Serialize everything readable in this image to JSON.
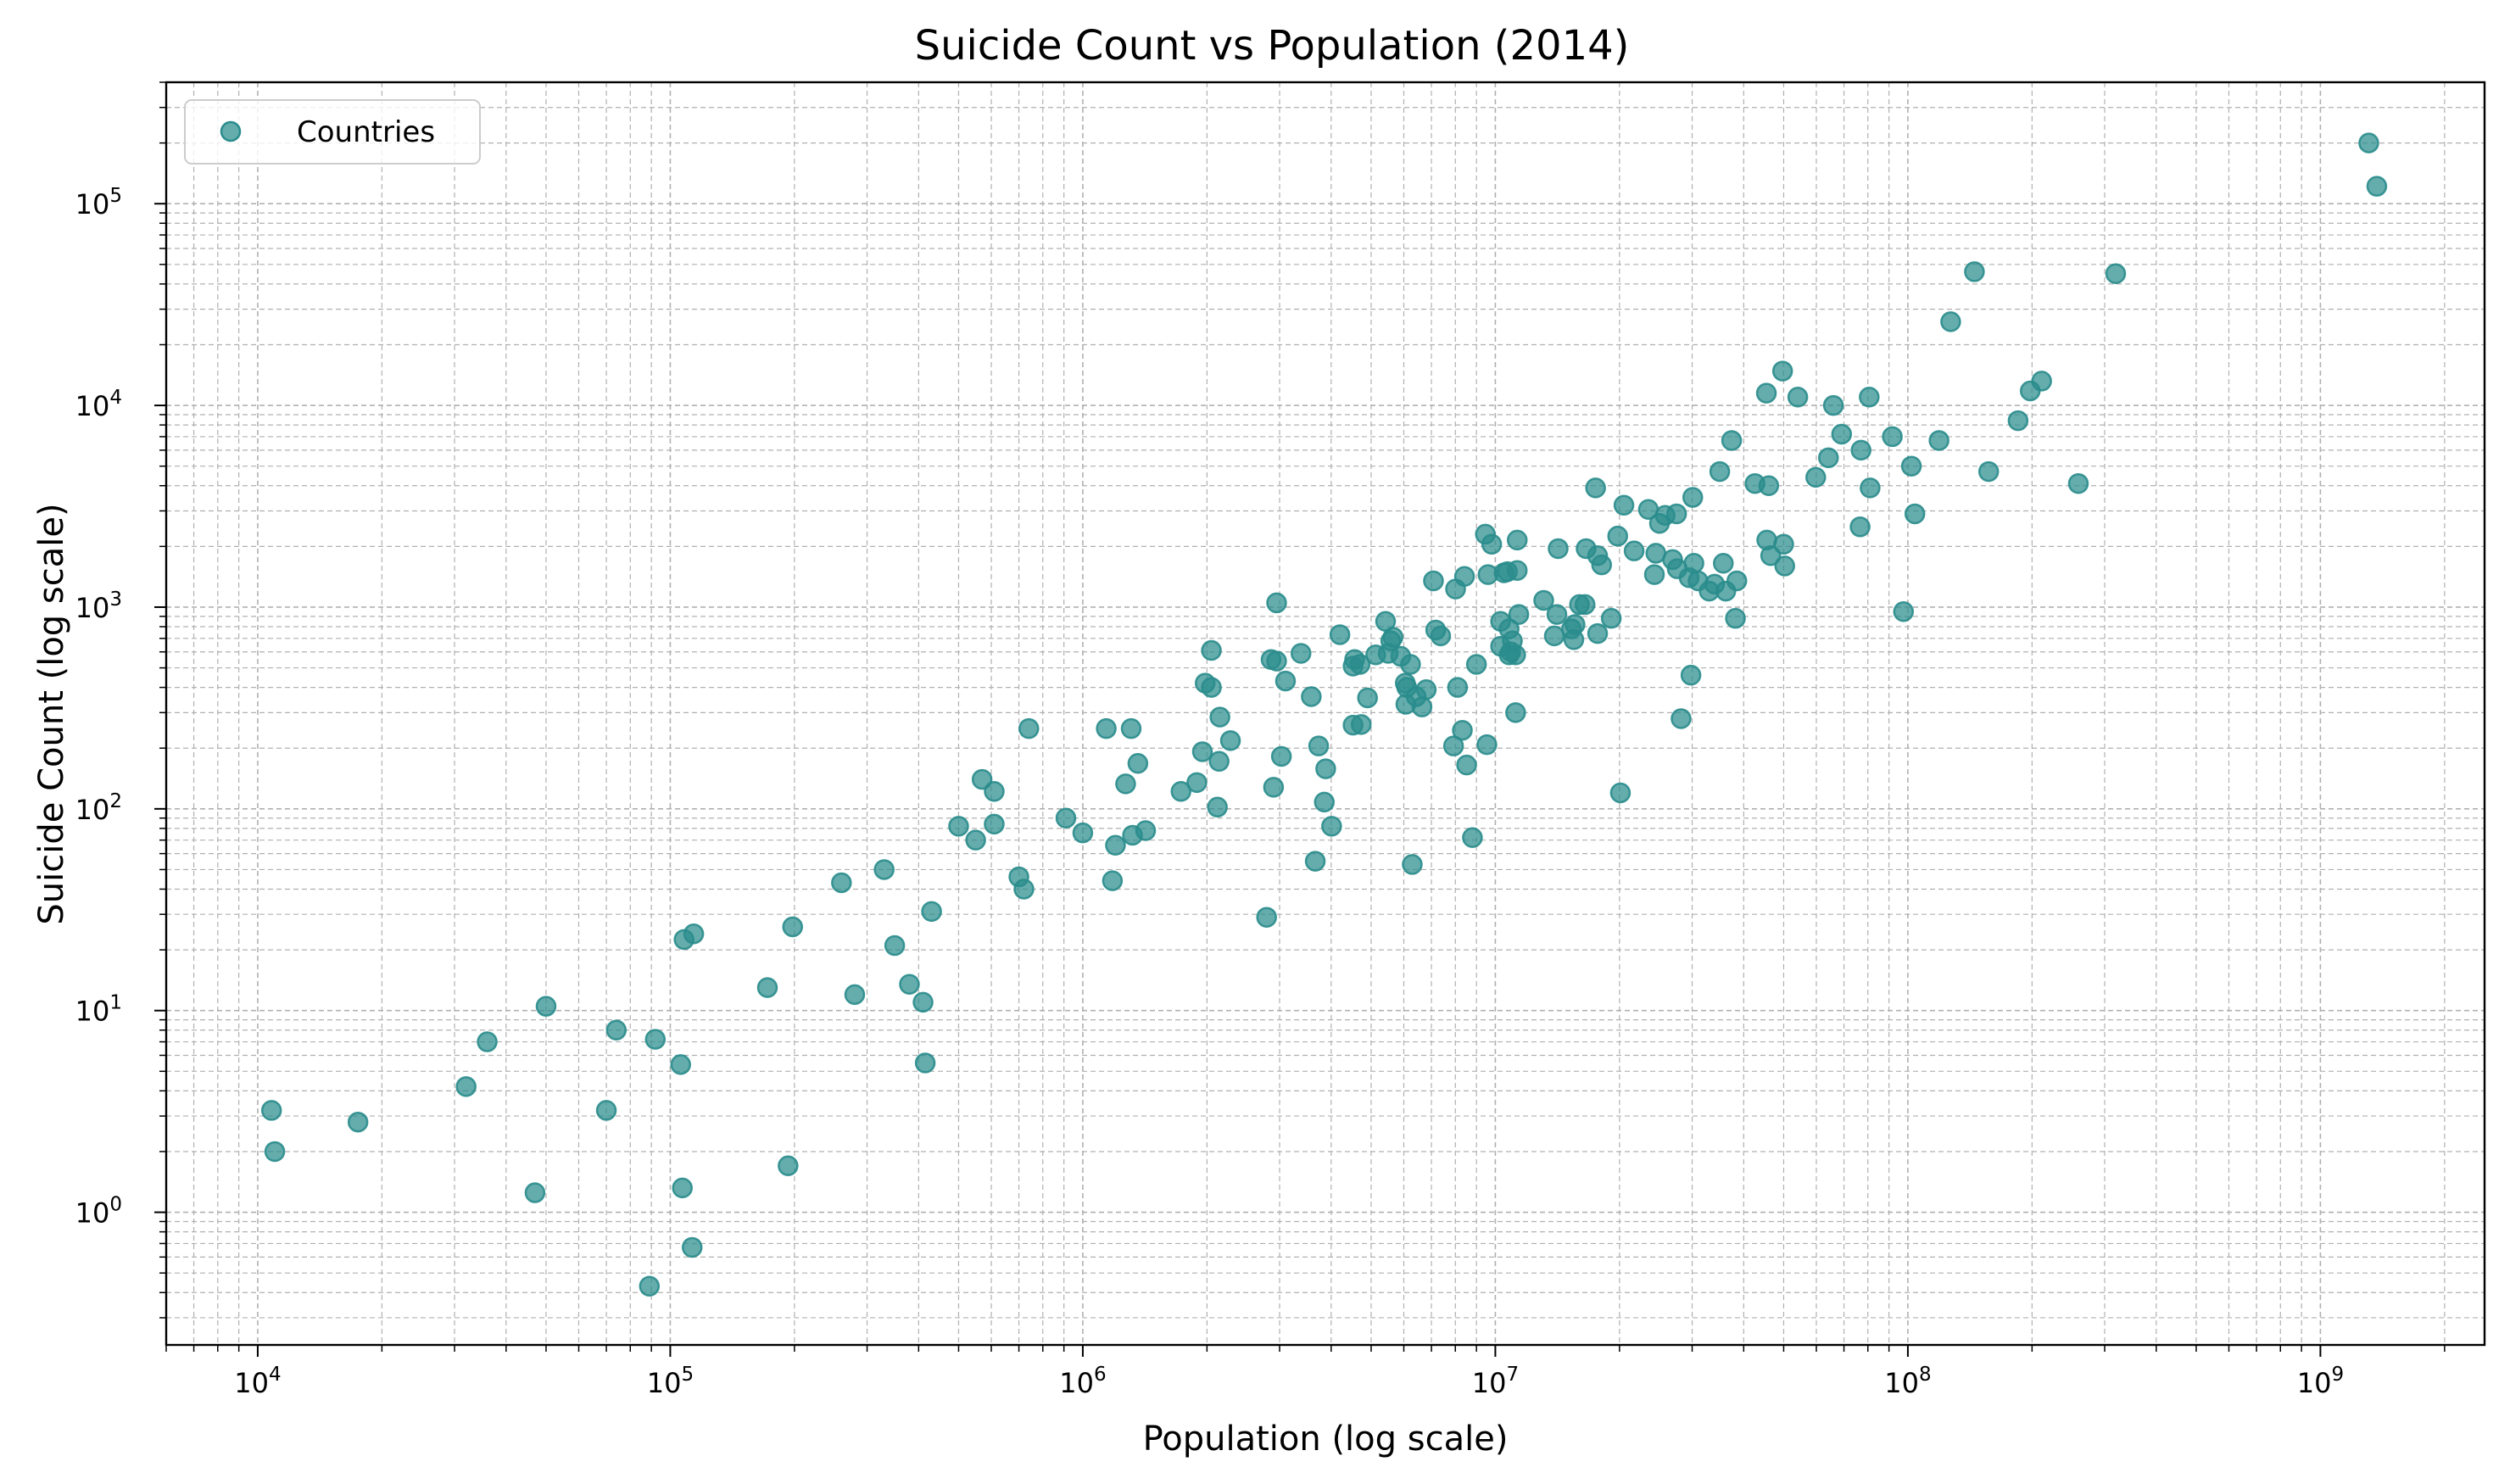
{
  "chart_data": {
    "type": "scatter",
    "title": "Suicide Count vs Population (2014)",
    "xlabel": "Population (log scale)",
    "ylabel": "Suicide Count (log scale)",
    "xscale": "log",
    "yscale": "log",
    "xlim": [
      6000,
      2500000000
    ],
    "ylim": [
      0.22,
      400000
    ],
    "grid": true,
    "grid_which": "both",
    "legend_position": "top-left",
    "marker_color": "#2a8c8c",
    "x_ticks": [
      {
        "base": "10",
        "exp": "4",
        "value": 10000
      },
      {
        "base": "10",
        "exp": "5",
        "value": 100000
      },
      {
        "base": "10",
        "exp": "6",
        "value": 1000000
      },
      {
        "base": "10",
        "exp": "7",
        "value": 10000000
      },
      {
        "base": "10",
        "exp": "8",
        "value": 100000000
      },
      {
        "base": "10",
        "exp": "9",
        "value": 1000000000
      }
    ],
    "y_ticks": [
      {
        "base": "10",
        "exp": "0",
        "value": 1
      },
      {
        "base": "10",
        "exp": "1",
        "value": 10
      },
      {
        "base": "10",
        "exp": "2",
        "value": 100
      },
      {
        "base": "10",
        "exp": "3",
        "value": 1000
      },
      {
        "base": "10",
        "exp": "4",
        "value": 10000
      },
      {
        "base": "10",
        "exp": "5",
        "value": 100000
      }
    ],
    "series": [
      {
        "name": "Countries",
        "points": [
          [
            10800,
            3.2
          ],
          [
            11000,
            2.0
          ],
          [
            17500,
            2.8
          ],
          [
            32000,
            4.2
          ],
          [
            36000,
            7.0
          ],
          [
            47000,
            1.25
          ],
          [
            50000,
            10.5
          ],
          [
            70000,
            3.2
          ],
          [
            74000,
            8.0
          ],
          [
            89000,
            0.43
          ],
          [
            92000,
            7.2
          ],
          [
            106000,
            5.4
          ],
          [
            107000,
            1.32
          ],
          [
            108000,
            22.5
          ],
          [
            113000,
            0.67
          ],
          [
            114000,
            24
          ],
          [
            172000,
            13
          ],
          [
            193000,
            1.7
          ],
          [
            198000,
            26
          ],
          [
            260000,
            43
          ],
          [
            280000,
            12
          ],
          [
            330000,
            50
          ],
          [
            350000,
            21
          ],
          [
            380000,
            13.5
          ],
          [
            410000,
            11
          ],
          [
            415000,
            5.5
          ],
          [
            430000,
            31
          ],
          [
            500000,
            82
          ],
          [
            550000,
            70
          ],
          [
            570000,
            140
          ],
          [
            610000,
            122
          ],
          [
            610000,
            84
          ],
          [
            700000,
            46
          ],
          [
            720000,
            40
          ],
          [
            740000,
            250
          ],
          [
            910000,
            90
          ],
          [
            1000000,
            76
          ],
          [
            1140000,
            250
          ],
          [
            1180000,
            44
          ],
          [
            1200000,
            66
          ],
          [
            1270000,
            133
          ],
          [
            1310000,
            250
          ],
          [
            1320000,
            74
          ],
          [
            1360000,
            168
          ],
          [
            1420000,
            78
          ],
          [
            1730000,
            122
          ],
          [
            1890000,
            135
          ],
          [
            1950000,
            192
          ],
          [
            1980000,
            420
          ],
          [
            2050000,
            610
          ],
          [
            2050000,
            400
          ],
          [
            2120000,
            102
          ],
          [
            2140000,
            172
          ],
          [
            2150000,
            285
          ],
          [
            2280000,
            218
          ],
          [
            2790000,
            29
          ],
          [
            2860000,
            550
          ],
          [
            2900000,
            128
          ],
          [
            2950000,
            1050
          ],
          [
            2950000,
            540
          ],
          [
            3030000,
            182
          ],
          [
            3100000,
            430
          ],
          [
            3380000,
            590
          ],
          [
            3580000,
            360
          ],
          [
            3660000,
            55
          ],
          [
            3730000,
            205
          ],
          [
            3850000,
            108
          ],
          [
            3880000,
            158
          ],
          [
            4010000,
            82
          ],
          [
            4200000,
            730
          ],
          [
            4520000,
            260
          ],
          [
            4520000,
            510
          ],
          [
            4560000,
            550
          ],
          [
            4700000,
            520
          ],
          [
            4730000,
            262
          ],
          [
            4900000,
            355
          ],
          [
            5130000,
            580
          ],
          [
            5420000,
            850
          ],
          [
            5500000,
            590
          ],
          [
            5580000,
            680
          ],
          [
            5650000,
            710
          ],
          [
            5900000,
            570
          ],
          [
            6050000,
            420
          ],
          [
            6070000,
            330
          ],
          [
            6100000,
            400
          ],
          [
            6230000,
            520
          ],
          [
            6290000,
            53
          ],
          [
            6430000,
            360
          ],
          [
            6640000,
            320
          ],
          [
            6800000,
            390
          ],
          [
            7080000,
            1350
          ],
          [
            7170000,
            770
          ],
          [
            7370000,
            720
          ],
          [
            7920000,
            205
          ],
          [
            8010000,
            1230
          ],
          [
            8100000,
            400
          ],
          [
            8320000,
            245
          ],
          [
            8420000,
            1420
          ],
          [
            8520000,
            165
          ],
          [
            8800000,
            72
          ],
          [
            9000000,
            520
          ],
          [
            9460000,
            2300
          ],
          [
            9540000,
            208
          ],
          [
            9600000,
            1450
          ],
          [
            9800000,
            2050
          ],
          [
            10300000,
            850
          ],
          [
            10300000,
            640
          ],
          [
            10500000,
            1480
          ],
          [
            10700000,
            1500
          ],
          [
            10800000,
            780
          ],
          [
            10800000,
            580
          ],
          [
            10900000,
            600
          ],
          [
            11000000,
            680
          ],
          [
            11200000,
            580
          ],
          [
            11200000,
            300
          ],
          [
            11300000,
            2150
          ],
          [
            11300000,
            1520
          ],
          [
            11400000,
            920
          ],
          [
            13100000,
            1080
          ],
          [
            13900000,
            720
          ],
          [
            14100000,
            920
          ],
          [
            14200000,
            1950
          ],
          [
            15300000,
            780
          ],
          [
            15500000,
            690
          ],
          [
            15600000,
            820
          ],
          [
            16000000,
            1030
          ],
          [
            16500000,
            1030
          ],
          [
            16600000,
            1950
          ],
          [
            17500000,
            3900
          ],
          [
            17700000,
            740
          ],
          [
            17700000,
            1800
          ],
          [
            18100000,
            1620
          ],
          [
            19100000,
            880
          ],
          [
            19800000,
            2250
          ],
          [
            20100000,
            120
          ],
          [
            20500000,
            3200
          ],
          [
            21700000,
            1900
          ],
          [
            23500000,
            3050
          ],
          [
            24300000,
            1450
          ],
          [
            24500000,
            1850
          ],
          [
            25000000,
            2600
          ],
          [
            25800000,
            2850
          ],
          [
            26900000,
            1720
          ],
          [
            27500000,
            2900
          ],
          [
            27600000,
            1550
          ],
          [
            28200000,
            280
          ],
          [
            29500000,
            1400
          ],
          [
            29800000,
            460
          ],
          [
            30100000,
            3500
          ],
          [
            30300000,
            1650
          ],
          [
            31000000,
            1350
          ],
          [
            33000000,
            1200
          ],
          [
            34000000,
            1300
          ],
          [
            35000000,
            4700
          ],
          [
            35700000,
            1650
          ],
          [
            36200000,
            1200
          ],
          [
            37400000,
            6700
          ],
          [
            38200000,
            880
          ],
          [
            38500000,
            1350
          ],
          [
            42600000,
            4100
          ],
          [
            45400000,
            11500
          ],
          [
            45500000,
            2150
          ],
          [
            46000000,
            4000
          ],
          [
            46500000,
            1800
          ],
          [
            49700000,
            14800
          ],
          [
            50000000,
            2050
          ],
          [
            50300000,
            1600
          ],
          [
            54100000,
            11000
          ],
          [
            59800000,
            4400
          ],
          [
            64200000,
            5500
          ],
          [
            66000000,
            10000
          ],
          [
            69100000,
            7200
          ],
          [
            76600000,
            2500
          ],
          [
            77000000,
            6000
          ],
          [
            80600000,
            11000
          ],
          [
            81000000,
            3900
          ],
          [
            91700000,
            7000
          ],
          [
            97600000,
            950
          ],
          [
            102000000,
            5000
          ],
          [
            104000000,
            2900
          ],
          [
            119000000,
            6700
          ],
          [
            127000000,
            26000
          ],
          [
            145000000,
            46000
          ],
          [
            157000000,
            4700
          ],
          [
            185000000,
            8400
          ],
          [
            198000000,
            11800
          ],
          [
            211000000,
            13200
          ],
          [
            259000000,
            4100
          ],
          [
            319000000,
            45000
          ],
          [
            1310000000,
            200000
          ],
          [
            1370000000,
            122000
          ]
        ]
      }
    ]
  }
}
